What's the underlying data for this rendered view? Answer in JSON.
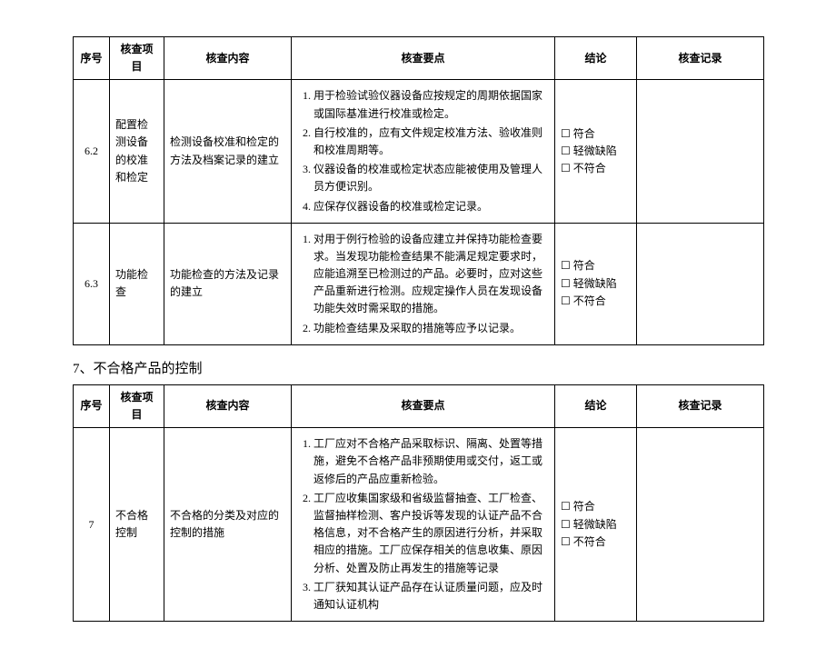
{
  "headers": {
    "seq": "序号",
    "item": "核查项目",
    "content": "核查内容",
    "key": "核查要点",
    "conclusion": "结论",
    "record": "核查记录"
  },
  "conclusion_options": {
    "opt1": "符合",
    "opt2": "轻微缺陷",
    "opt3": "不符合"
  },
  "checkbox_glyph": "☐",
  "row_6_2": {
    "num": "6.2",
    "item": "配置检测设备的校准和检定",
    "content": "检测设备校准和检定的方法及档案记录的建立",
    "key1": "用于检验试验仪器设备应按规定的周期依据国家或国际基准进行校准或检定。",
    "key2": "自行校准的，应有文件规定校准方法、验收准则和校准周期等。",
    "key3": "仪器设备的校准或检定状态应能被使用及管理人员方便识别。",
    "key4": "应保存仪器设备的校准或检定记录。"
  },
  "row_6_3": {
    "num": "6.3",
    "item": "功能检查",
    "content": "功能检查的方法及记录的建立",
    "key1": "对用于例行检验的设备应建立并保持功能检查要求。当发现功能检查结果不能满足规定要求时，应能追溯至已检测过的产品。必要时，应对这些产品重新进行检测。应规定操作人员在发现设备功能失效时需采取的措施。",
    "key2": "功能检查结果及采取的措施等应予以记录。"
  },
  "section7_title": "7、不合格产品的控制",
  "row_7": {
    "num": "7",
    "item": "不合格控制",
    "content": "不合格的分类及对应的控制的措施",
    "key1": "工厂应对不合格产品采取标识、隔离、处置等措施，避免不合格产品非预期使用或交付，返工或返修后的产品应重新检验。",
    "key2": "工厂应收集国家级和省级监督抽查、工厂检查、监督抽样检测、客户投诉等发现的认证产品不合格信息，对不合格产生的原因进行分析，并采取相应的措施。工厂应保存相关的信息收集、原因分析、处置及防止再发生的措施等记录",
    "key3": "工厂获知其认证产品存在认证质量问题，应及时通知认证机构"
  }
}
